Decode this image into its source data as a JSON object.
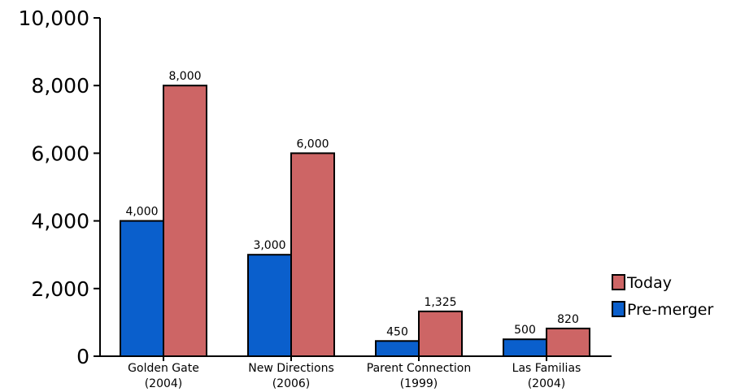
{
  "chart_data": {
    "type": "bar",
    "categories": [
      [
        "Golden Gate",
        "(2004)"
      ],
      [
        "New Directions",
        "(2006)"
      ],
      [
        "Parent Connection",
        "(1999)"
      ],
      [
        "Las Familias",
        "(2004)"
      ]
    ],
    "series": [
      {
        "name": "Pre-merger",
        "color": "#0a5fcc",
        "values": [
          4000,
          3000,
          450,
          500
        ],
        "labels": [
          "4,000",
          "3,000",
          "450",
          "500"
        ]
      },
      {
        "name": "Today",
        "color": "#cd6565",
        "values": [
          8000,
          6000,
          1325,
          820
        ],
        "labels": [
          "8,000",
          "6,000",
          "1,325",
          "820"
        ]
      }
    ],
    "ylim": [
      0,
      10000
    ],
    "yticks": [
      0,
      2000,
      4000,
      6000,
      8000,
      10000
    ],
    "ytick_labels": [
      "0",
      "2,000",
      "4,000",
      "6,000",
      "8,000",
      "10,000"
    ],
    "grid": false,
    "legend_placement": "right",
    "legend": [
      {
        "name": "Today",
        "color": "#cd6565"
      },
      {
        "name": "Pre-merger",
        "color": "#0a5fcc"
      }
    ]
  }
}
